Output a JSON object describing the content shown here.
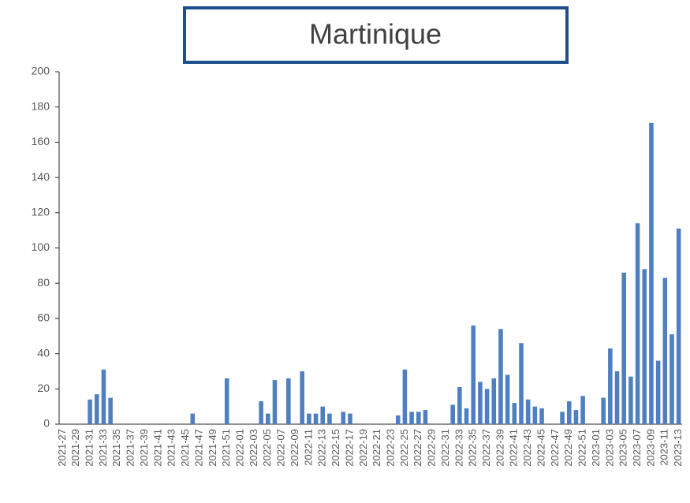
{
  "chart_data": {
    "type": "bar",
    "title": "Martinique",
    "categories": [
      "2021-27",
      null,
      "2021-29",
      null,
      "2021-31",
      null,
      "2021-33",
      null,
      "2021-35",
      null,
      "2021-37",
      null,
      "2021-39",
      null,
      "2021-41",
      null,
      "2021-43",
      null,
      "2021-45",
      null,
      "2021-47",
      null,
      "2021-49",
      null,
      "2021-51",
      null,
      "2022-01",
      null,
      "2022-03",
      null,
      "2022-05",
      null,
      "2022-07",
      null,
      "2022-09",
      null,
      "2022-11",
      null,
      "2022-13",
      null,
      "2022-15",
      null,
      "2022-17",
      null,
      "2022-19",
      null,
      "2022-21",
      null,
      "2022-23",
      null,
      "2022-25",
      null,
      "2022-27",
      null,
      "2022-29",
      null,
      "2022-31",
      null,
      "2022-33",
      null,
      "2022-35",
      null,
      "2022-37",
      null,
      "2022-39",
      null,
      "2022-41",
      null,
      "2022-43",
      null,
      "2022-45",
      null,
      "2022-47",
      null,
      "2022-49",
      null,
      "2022-51",
      null,
      "2023-01",
      null,
      "2023-03",
      null,
      "2023-05",
      null,
      "2023-07",
      null,
      "2023-09",
      null,
      "2023-11",
      null,
      "2023-13"
    ],
    "values": [
      0,
      0,
      0,
      0,
      14,
      17,
      31,
      15,
      0,
      0,
      0,
      0,
      0,
      0,
      0,
      0,
      0,
      0,
      0,
      6,
      0,
      0,
      0,
      0,
      26,
      0,
      0,
      0,
      0,
      13,
      6,
      25,
      0,
      26,
      0,
      30,
      6,
      6,
      10,
      6,
      0,
      7,
      6,
      0,
      0,
      0,
      0,
      0,
      0,
      5,
      31,
      7,
      7,
      8,
      0,
      0,
      0,
      11,
      21,
      9,
      56,
      24,
      20,
      26,
      54,
      28,
      12,
      46,
      14,
      10,
      9,
      0,
      0,
      7,
      13,
      8,
      16,
      0,
      0,
      15,
      43,
      30,
      86,
      27,
      114,
      88,
      171,
      36,
      83,
      51,
      111
    ],
    "color": "#4f7fc0",
    "ylim": [
      0,
      200
    ],
    "yticks": [
      0,
      20,
      40,
      60,
      80,
      100,
      120,
      140,
      160,
      180,
      200
    ],
    "grid": false
  }
}
